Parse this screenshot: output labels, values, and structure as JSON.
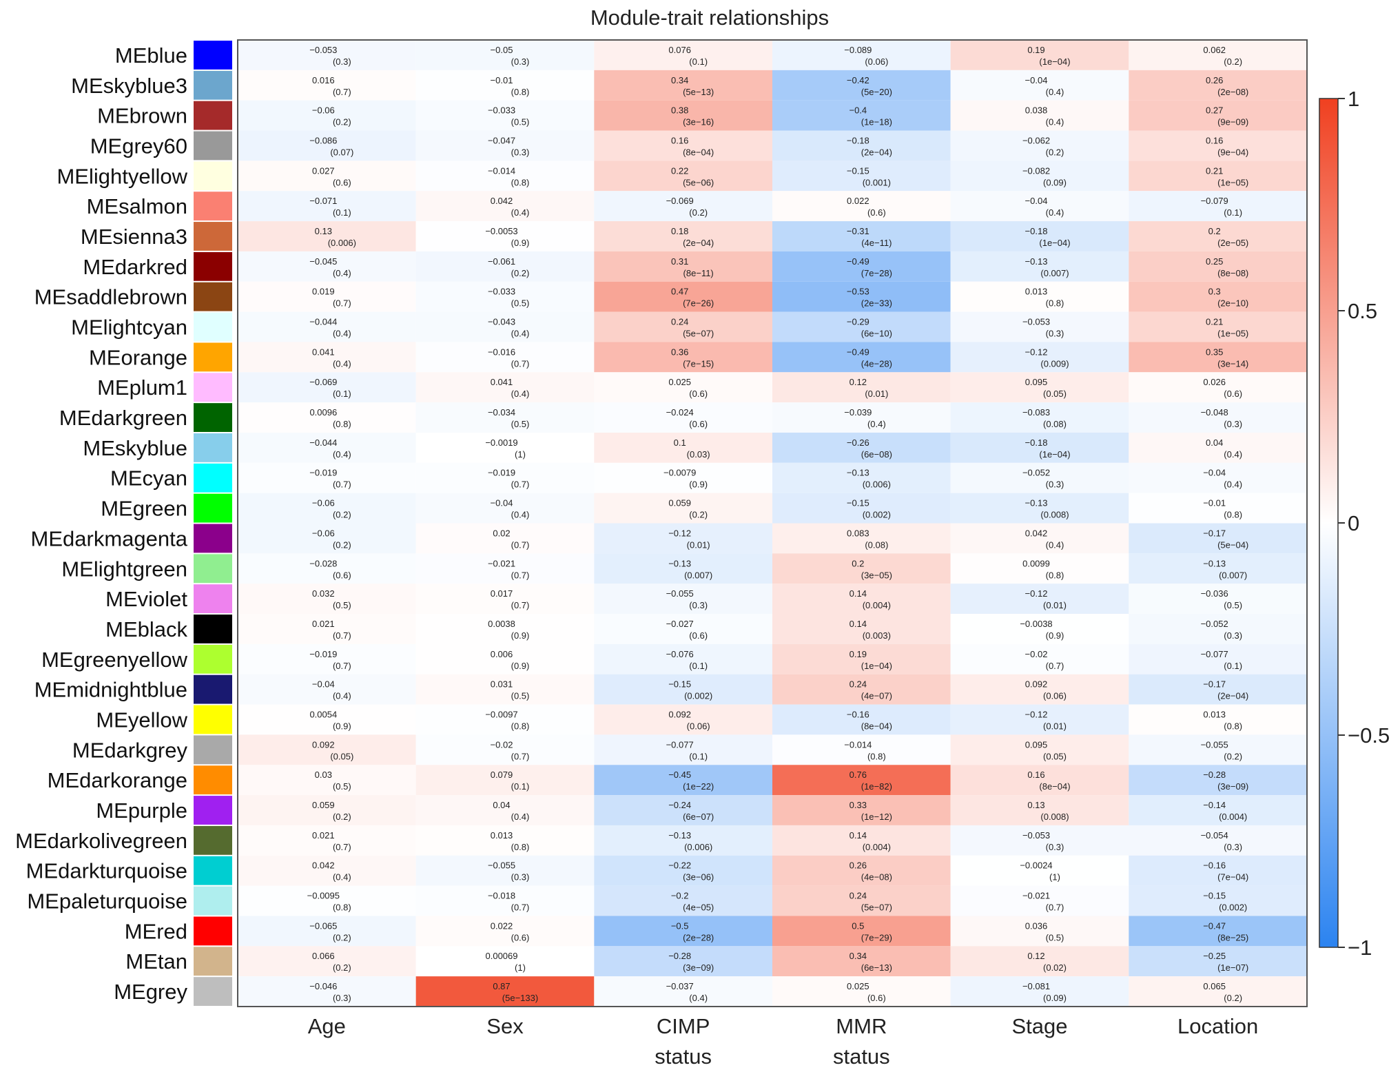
{
  "chart_data": {
    "type": "heatmap",
    "title": "Module-trait relationships",
    "columns": [
      "Age",
      "Sex",
      "CIMP status",
      "MMR status",
      "Stage",
      "Location"
    ],
    "rows": [
      {
        "module": "MEblue",
        "color": "#0000ff",
        "r": [
          "−0.053",
          "−0.05",
          "0.076",
          "−0.089",
          "0.19",
          "0.062"
        ],
        "p": [
          "(0.3)",
          "(0.3)",
          "(0.1)",
          "(0.06)",
          "(1e−04)",
          "(0.2)"
        ]
      },
      {
        "module": "MEskyblue3",
        "color": "#6ca6cd",
        "r": [
          "0.016",
          "−0.01",
          "0.34",
          "−0.42",
          "−0.04",
          "0.26"
        ],
        "p": [
          "(0.7)",
          "(0.8)",
          "(5e−13)",
          "(5e−20)",
          "(0.4)",
          "(2e−08)"
        ]
      },
      {
        "module": "MEbrown",
        "color": "#a52a2a",
        "r": [
          "−0.06",
          "−0.033",
          "0.38",
          "−0.4",
          "0.038",
          "0.27"
        ],
        "p": [
          "(0.2)",
          "(0.5)",
          "(3e−16)",
          "(1e−18)",
          "(0.4)",
          "(9e−09)"
        ]
      },
      {
        "module": "MEgrey60",
        "color": "#999999",
        "r": [
          "−0.086",
          "−0.047",
          "0.16",
          "−0.18",
          "−0.062",
          "0.16"
        ],
        "p": [
          "(0.07)",
          "(0.3)",
          "(8e−04)",
          "(2e−04)",
          "(0.2)",
          "(9e−04)"
        ]
      },
      {
        "module": "MElightyellow",
        "color": "#ffffe0",
        "r": [
          "0.027",
          "−0.014",
          "0.22",
          "−0.15",
          "−0.082",
          "0.21"
        ],
        "p": [
          "(0.6)",
          "(0.8)",
          "(5e−06)",
          "(0.001)",
          "(0.09)",
          "(1e−05)"
        ]
      },
      {
        "module": "MEsalmon",
        "color": "#fa8072",
        "r": [
          "−0.071",
          "0.042",
          "−0.069",
          "0.022",
          "−0.04",
          "−0.079"
        ],
        "p": [
          "(0.1)",
          "(0.4)",
          "(0.2)",
          "(0.6)",
          "(0.4)",
          "(0.1)"
        ]
      },
      {
        "module": "MEsienna3",
        "color": "#cd6839",
        "r": [
          "0.13",
          "−0.0053",
          "0.18",
          "−0.31",
          "−0.18",
          "0.2"
        ],
        "p": [
          "(0.006)",
          "(0.9)",
          "(2e−04)",
          "(4e−11)",
          "(1e−04)",
          "(2e−05)"
        ]
      },
      {
        "module": "MEdarkred",
        "color": "#8b0000",
        "r": [
          "−0.045",
          "−0.061",
          "0.31",
          "−0.49",
          "−0.13",
          "0.25"
        ],
        "p": [
          "(0.4)",
          "(0.2)",
          "(8e−11)",
          "(7e−28)",
          "(0.007)",
          "(8e−08)"
        ]
      },
      {
        "module": "MEsaddlebrown",
        "color": "#8b4513",
        "r": [
          "0.019",
          "−0.033",
          "0.47",
          "−0.53",
          "0.013",
          "0.3"
        ],
        "p": [
          "(0.7)",
          "(0.5)",
          "(7e−26)",
          "(2e−33)",
          "(0.8)",
          "(2e−10)"
        ]
      },
      {
        "module": "MElightcyan",
        "color": "#e0ffff",
        "r": [
          "−0.044",
          "−0.043",
          "0.24",
          "−0.29",
          "−0.053",
          "0.21"
        ],
        "p": [
          "(0.4)",
          "(0.4)",
          "(5e−07)",
          "(6e−10)",
          "(0.3)",
          "(1e−05)"
        ]
      },
      {
        "module": "MEorange",
        "color": "#ffa500",
        "r": [
          "0.041",
          "−0.016",
          "0.36",
          "−0.49",
          "−0.12",
          "0.35"
        ],
        "p": [
          "(0.4)",
          "(0.7)",
          "(7e−15)",
          "(4e−28)",
          "(0.009)",
          "(3e−14)"
        ]
      },
      {
        "module": "MEplum1",
        "color": "#ffbbff",
        "r": [
          "−0.069",
          "0.041",
          "0.025",
          "0.12",
          "0.095",
          "0.026"
        ],
        "p": [
          "(0.1)",
          "(0.4)",
          "(0.6)",
          "(0.01)",
          "(0.05)",
          "(0.6)"
        ]
      },
      {
        "module": "MEdarkgreen",
        "color": "#006400",
        "r": [
          "0.0096",
          "−0.034",
          "−0.024",
          "−0.039",
          "−0.083",
          "−0.048"
        ],
        "p": [
          "(0.8)",
          "(0.5)",
          "(0.6)",
          "(0.4)",
          "(0.08)",
          "(0.3)"
        ]
      },
      {
        "module": "MEskyblue",
        "color": "#87ceeb",
        "r": [
          "−0.044",
          "−0.0019",
          "0.1",
          "−0.26",
          "−0.18",
          "0.04"
        ],
        "p": [
          "(0.4)",
          "(1)",
          "(0.03)",
          "(6e−08)",
          "(1e−04)",
          "(0.4)"
        ]
      },
      {
        "module": "MEcyan",
        "color": "#00ffff",
        "r": [
          "−0.019",
          "−0.019",
          "−0.0079",
          "−0.13",
          "−0.052",
          "−0.04"
        ],
        "p": [
          "(0.7)",
          "(0.7)",
          "(0.9)",
          "(0.006)",
          "(0.3)",
          "(0.4)"
        ]
      },
      {
        "module": "MEgreen",
        "color": "#00ff00",
        "r": [
          "−0.06",
          "−0.04",
          "0.059",
          "−0.15",
          "−0.13",
          "−0.01"
        ],
        "p": [
          "(0.2)",
          "(0.4)",
          "(0.2)",
          "(0.002)",
          "(0.008)",
          "(0.8)"
        ]
      },
      {
        "module": "MEdarkmagenta",
        "color": "#8b008b",
        "r": [
          "−0.06",
          "0.02",
          "−0.12",
          "0.083",
          "0.042",
          "−0.17"
        ],
        "p": [
          "(0.2)",
          "(0.7)",
          "(0.01)",
          "(0.08)",
          "(0.4)",
          "(5e−04)"
        ]
      },
      {
        "module": "MElightgreen",
        "color": "#90ee90",
        "r": [
          "−0.028",
          "−0.021",
          "−0.13",
          "0.2",
          "0.0099",
          "−0.13"
        ],
        "p": [
          "(0.6)",
          "(0.7)",
          "(0.007)",
          "(3e−05)",
          "(0.8)",
          "(0.007)"
        ]
      },
      {
        "module": "MEviolet",
        "color": "#ee82ee",
        "r": [
          "0.032",
          "0.017",
          "−0.055",
          "0.14",
          "−0.12",
          "−0.036"
        ],
        "p": [
          "(0.5)",
          "(0.7)",
          "(0.3)",
          "(0.004)",
          "(0.01)",
          "(0.5)"
        ]
      },
      {
        "module": "MEblack",
        "color": "#000000",
        "r": [
          "0.021",
          "0.0038",
          "−0.027",
          "0.14",
          "−0.0038",
          "−0.052"
        ],
        "p": [
          "(0.7)",
          "(0.9)",
          "(0.6)",
          "(0.003)",
          "(0.9)",
          "(0.3)"
        ]
      },
      {
        "module": "MEgreenyellow",
        "color": "#adff2f",
        "r": [
          "−0.019",
          "0.006",
          "−0.076",
          "0.19",
          "−0.02",
          "−0.077"
        ],
        "p": [
          "(0.7)",
          "(0.9)",
          "(0.1)",
          "(1e−04)",
          "(0.7)",
          "(0.1)"
        ]
      },
      {
        "module": "MEmidnightblue",
        "color": "#191970",
        "r": [
          "−0.04",
          "0.031",
          "−0.15",
          "0.24",
          "0.092",
          "−0.17"
        ],
        "p": [
          "(0.4)",
          "(0.5)",
          "(0.002)",
          "(4e−07)",
          "(0.06)",
          "(2e−04)"
        ]
      },
      {
        "module": "MEyellow",
        "color": "#ffff00",
        "r": [
          "0.0054",
          "−0.0097",
          "0.092",
          "−0.16",
          "−0.12",
          "0.013"
        ],
        "p": [
          "(0.9)",
          "(0.8)",
          "(0.06)",
          "(8e−04)",
          "(0.01)",
          "(0.8)"
        ]
      },
      {
        "module": "MEdarkgrey",
        "color": "#a9a9a9",
        "r": [
          "0.092",
          "−0.02",
          "−0.077",
          "−0.014",
          "0.095",
          "−0.055"
        ],
        "p": [
          "(0.05)",
          "(0.7)",
          "(0.1)",
          "(0.8)",
          "(0.05)",
          "(0.2)"
        ]
      },
      {
        "module": "MEdarkorange",
        "color": "#ff8c00",
        "r": [
          "0.03",
          "0.079",
          "−0.45",
          "0.76",
          "0.16",
          "−0.28"
        ],
        "p": [
          "(0.5)",
          "(0.1)",
          "(1e−22)",
          "(1e−82)",
          "(8e−04)",
          "(3e−09)"
        ]
      },
      {
        "module": "MEpurple",
        "color": "#a020f0",
        "r": [
          "0.059",
          "0.04",
          "−0.24",
          "0.33",
          "0.13",
          "−0.14"
        ],
        "p": [
          "(0.2)",
          "(0.4)",
          "(6e−07)",
          "(1e−12)",
          "(0.008)",
          "(0.004)"
        ]
      },
      {
        "module": "MEdarkolivegreen",
        "color": "#556b2f",
        "r": [
          "0.021",
          "0.013",
          "−0.13",
          "0.14",
          "−0.053",
          "−0.054"
        ],
        "p": [
          "(0.7)",
          "(0.8)",
          "(0.006)",
          "(0.004)",
          "(0.3)",
          "(0.3)"
        ]
      },
      {
        "module": "MEdarkturquoise",
        "color": "#00ced1",
        "r": [
          "0.042",
          "−0.055",
          "−0.22",
          "0.26",
          "−0.0024",
          "−0.16"
        ],
        "p": [
          "(0.4)",
          "(0.3)",
          "(3e−06)",
          "(4e−08)",
          "(1)",
          "(7e−04)"
        ]
      },
      {
        "module": "MEpaleturquoise",
        "color": "#afeeee",
        "r": [
          "−0.0095",
          "−0.018",
          "−0.2",
          "0.24",
          "−0.021",
          "−0.15"
        ],
        "p": [
          "(0.8)",
          "(0.7)",
          "(4e−05)",
          "(5e−07)",
          "(0.7)",
          "(0.002)"
        ]
      },
      {
        "module": "MEred",
        "color": "#ff0000",
        "r": [
          "−0.065",
          "0.022",
          "−0.5",
          "0.5",
          "0.036",
          "−0.47"
        ],
        "p": [
          "(0.2)",
          "(0.6)",
          "(2e−28)",
          "(7e−29)",
          "(0.5)",
          "(8e−25)"
        ]
      },
      {
        "module": "MEtan",
        "color": "#d2b48c",
        "r": [
          "0.066",
          "0.00069",
          "−0.28",
          "0.34",
          "0.12",
          "−0.25"
        ],
        "p": [
          "(0.2)",
          "(1)",
          "(3e−09)",
          "(6e−13)",
          "(0.02)",
          "(1e−07)"
        ]
      },
      {
        "module": "MEgrey",
        "color": "#bebebe",
        "r": [
          "−0.046",
          "0.87",
          "−0.037",
          "0.025",
          "−0.081",
          "0.065"
        ],
        "p": [
          "(0.3)",
          "(5e−133)",
          "(0.4)",
          "(0.6)",
          "(0.09)",
          "(0.2)"
        ]
      }
    ],
    "colorbar": {
      "range": [
        -1,
        1
      ],
      "ticks": [
        1,
        0.5,
        0,
        -0.5,
        -1
      ],
      "tick_labels": [
        "1",
        "0.5",
        "0",
        "−0.5",
        "−1"
      ],
      "low_color": "#2b83f0",
      "mid_color": "#ffffff",
      "high_color": "#f04020"
    }
  }
}
